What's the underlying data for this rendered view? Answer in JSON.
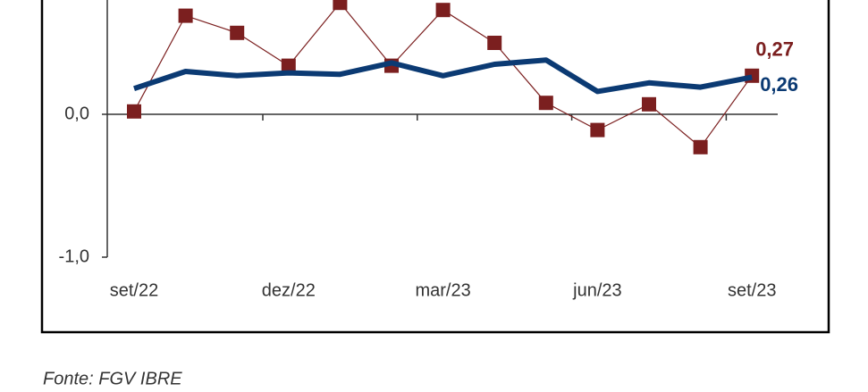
{
  "chart_data": {
    "type": "line",
    "categories": [
      "set/22",
      null,
      null,
      "dez/22",
      null,
      null,
      "mar/23",
      null,
      null,
      "jun/23",
      null,
      null,
      "set/23"
    ],
    "series": [
      {
        "color": "#7b1f1f",
        "marker": "square",
        "values": [
          0.02,
          0.69,
          0.57,
          0.34,
          0.78,
          0.34,
          0.73,
          0.5,
          0.08,
          -0.11,
          0.07,
          -0.23,
          0.27
        ],
        "value_labels": [
          null,
          null,
          null,
          null,
          null,
          null,
          null,
          null,
          null,
          null,
          null,
          null,
          "0,27"
        ]
      },
      {
        "color": "#0b3a73",
        "values": [
          0.18,
          0.3,
          0.27,
          0.29,
          0.28,
          0.36,
          0.27,
          0.35,
          0.38,
          0.16,
          0.22,
          0.19,
          0.26
        ],
        "value_labels": [
          null,
          null,
          null,
          null,
          null,
          null,
          null,
          null,
          null,
          null,
          null,
          null,
          "0,26"
        ]
      }
    ],
    "ylim": [
      -1,
      0.8
    ],
    "yticks": [
      {
        "value": -1,
        "label": "-1,0"
      },
      {
        "value": 0,
        "label": "0,0"
      }
    ],
    "source": "Fonte: FGV IBRE"
  }
}
